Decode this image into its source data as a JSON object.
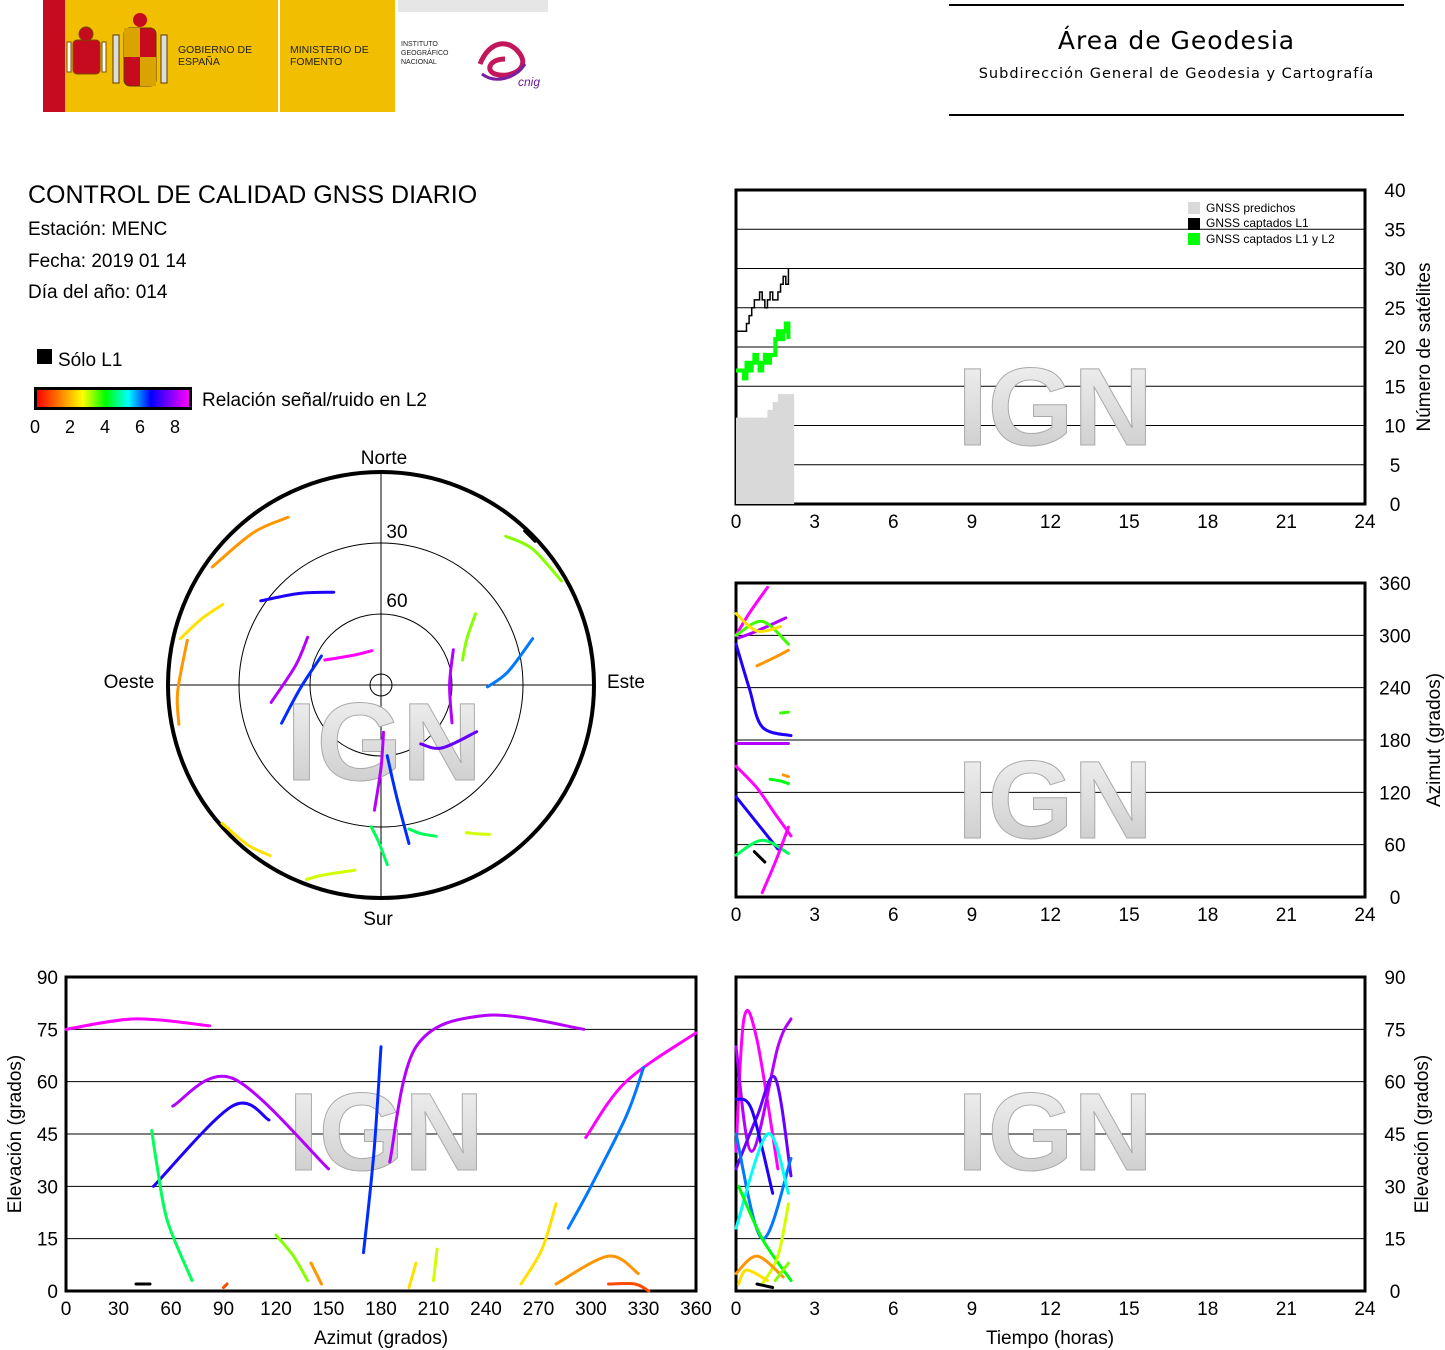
{
  "header": {
    "area_title": "Área de Geodesia",
    "area_subtitle": "Subdirección General de Geodesia y Cartografía",
    "logo": {
      "gobierno": "GOBIERNO DE ESPAÑA",
      "ministerio": "MINISTERIO DE FOMENTO",
      "instituto": "INSTITUTO GEOGRÁFICO NACIONAL",
      "cnig": "cnig"
    }
  },
  "info": {
    "title": "CONTROL DE CALIDAD GNSS DIARIO",
    "station": "Estación: MENC",
    "date": "Fecha: 2019 01 14",
    "doy": "Día del año: 014"
  },
  "legend": {
    "only_l1": "Sólo L1",
    "snr_label": "Relación señal/ruido en L2",
    "snr_ticks": [
      "0",
      "2",
      "4",
      "6",
      "8"
    ]
  },
  "watermark": "IGN",
  "colors": {
    "gnss_predicted": "#d9d9d9",
    "gnss_l1": "#000000",
    "gnss_l1_l2": "#00ff00"
  },
  "chart_data": [
    {
      "id": "skyplot",
      "type": "polar",
      "labels": {
        "north": "Norte",
        "south": "Sur",
        "east": "Este",
        "west": "Oeste"
      },
      "rings": [
        "30",
        "60"
      ],
      "tracks": [
        {
          "az": [
            305,
            320,
            331
          ],
          "el": [
            3,
            6,
            9
          ],
          "snr": 1
        },
        {
          "az": [
            283,
            290,
            297
          ],
          "el": [
            3,
            9,
            15
          ],
          "snr": 1.5
        },
        {
          "az": [
            259,
            268,
            283
          ],
          "el": [
            3,
            4,
            6
          ],
          "snr": 1
        },
        {
          "az": [
            229,
            220,
            213
          ],
          "el": [
            1,
            2,
            4
          ],
          "snr": 1.5
        },
        {
          "az": [
            201,
            197,
            188
          ],
          "el": [
            2,
            6,
            11
          ],
          "snr": 2
        },
        {
          "az": [
            144,
            147,
            150
          ],
          "el": [
            12,
            15,
            18
          ],
          "snr": 2
        },
        {
          "az": [
            160,
            165,
            169
          ],
          "el": [
            22,
            25,
            28
          ],
          "snr": 4
        },
        {
          "az": [
            43,
            45,
            47
          ],
          "el": [
            1,
            1,
            1
          ],
          "snr": 0
        },
        {
          "az": [
            60,
            48,
            40
          ],
          "el": [
            2,
            4,
            8
          ],
          "snr": 2.5
        },
        {
          "az": [
            53,
            62,
            73
          ],
          "el": [
            40,
            49,
            54
          ],
          "snr": 2.5
        },
        {
          "az": [
            73,
            84,
            91
          ],
          "el": [
            23,
            36,
            45
          ],
          "snr": 6
        },
        {
          "az": [
            64,
            90,
            118
          ],
          "el": [
            56,
            61,
            56
          ],
          "snr": 8
        },
        {
          "az": [
            116,
            136,
            146
          ],
          "el": [
            45,
            53,
            60
          ],
          "snr": 7.5
        },
        {
          "az": [
            249,
            268,
            296
          ],
          "el": [
            45,
            56,
            62
          ],
          "snr": 6.5
        },
        {
          "az": [
            261,
            283,
            303
          ],
          "el": [
            43,
            53,
            53
          ],
          "snr": 8
        },
        {
          "az": [
            294,
            318,
            345
          ],
          "el": [
            64,
            73,
            75
          ],
          "snr": 8.5
        },
        {
          "az": [
            183,
            180,
            177
          ],
          "el": [
            37,
            55,
            70
          ],
          "snr": 8
        },
        {
          "az": [
            170,
            172,
            175
          ],
          "el": [
            22,
            42,
            60
          ],
          "snr": 6.5
        },
        {
          "az": [
            178,
            181,
            184
          ],
          "el": [
            14,
            24,
            30
          ],
          "snr": 4
        },
        {
          "az": [
            305,
            318,
            333
          ],
          "el": [
            28,
            38,
            46
          ],
          "snr": 7
        }
      ]
    },
    {
      "id": "satellite-count",
      "type": "line",
      "xlim": [
        0,
        24
      ],
      "ylim": [
        0,
        40
      ],
      "xticks": [
        "0",
        "3",
        "6",
        "9",
        "12",
        "15",
        "18",
        "21",
        "24"
      ],
      "yticks": [
        "0",
        "5",
        "10",
        "15",
        "20",
        "25",
        "30",
        "35",
        "40"
      ],
      "ylabel": "Número de satélites",
      "legend_items": [
        "GNSS predichos",
        "GNSS captados L1",
        "GNSS captados L1 y L2"
      ],
      "predicted": {
        "x": [
          0.1,
          0.3,
          0.5,
          0.7,
          0.9,
          1.1,
          1.3,
          1.5,
          1.7,
          1.9,
          2.1
        ],
        "y": [
          11,
          11,
          11,
          11,
          11,
          11,
          12,
          13,
          14,
          14,
          14
        ]
      },
      "l1": {
        "x": [
          0,
          0.2,
          0.4,
          0.5,
          0.6,
          0.7,
          0.8,
          0.9,
          1.0,
          1.1,
          1.2,
          1.3,
          1.4,
          1.5,
          1.6,
          1.7,
          1.8,
          1.9,
          2.0
        ],
        "y": [
          22,
          22,
          23,
          24,
          25,
          26,
          26,
          27,
          26,
          25,
          26,
          27,
          26,
          26,
          27,
          28,
          29,
          28,
          30
        ]
      },
      "l1l2": {
        "x": [
          0,
          0.2,
          0.3,
          0.4,
          0.5,
          0.6,
          0.7,
          0.8,
          0.9,
          1.0,
          1.1,
          1.2,
          1.3,
          1.4,
          1.5,
          1.6,
          1.7,
          1.8,
          1.9,
          2.0
        ],
        "y": [
          17,
          17,
          16,
          18,
          17,
          18,
          19,
          18,
          17,
          18,
          19,
          18,
          19,
          19,
          21,
          22,
          21,
          22,
          23,
          21
        ]
      }
    },
    {
      "id": "azimuth-vs-time",
      "type": "scatter",
      "xlim": [
        0,
        24
      ],
      "ylim": [
        0,
        360
      ],
      "xticks": [
        "0",
        "3",
        "6",
        "9",
        "12",
        "15",
        "18",
        "21",
        "24"
      ],
      "yticks": [
        "0",
        "60",
        "120",
        "180",
        "240",
        "300",
        "360"
      ],
      "ylabel": "Azimut (grados)",
      "tracks": [
        {
          "t": [
            0.0,
            0.5,
            1.2
          ],
          "az": [
            300,
            325,
            355
          ],
          "snr": 8.5
        },
        {
          "t": [
            0.1,
            0.8,
            1.9
          ],
          "az": [
            297,
            305,
            320
          ],
          "snr": 8
        },
        {
          "t": [
            0.0,
            1.0,
            2.0
          ],
          "az": [
            300,
            316,
            290
          ],
          "snr": 3
        },
        {
          "t": [
            0.0,
            0.8,
            1.7
          ],
          "az": [
            325,
            305,
            310
          ],
          "snr": 1.5
        },
        {
          "t": [
            0.8,
            1.5,
            2.0
          ],
          "az": [
            265,
            275,
            283
          ],
          "snr": 1
        },
        {
          "t": [
            0.0,
            0.5,
            1.0,
            2.1
          ],
          "az": [
            290,
            240,
            195,
            185
          ],
          "snr": 7
        },
        {
          "t": [
            1.7,
            2.0
          ],
          "az": [
            211,
            212
          ],
          "snr": 3
        },
        {
          "t": [
            0.0,
            1.0,
            2.0
          ],
          "az": [
            176,
            176,
            176
          ],
          "snr": 8
        },
        {
          "t": [
            1.3,
            1.7,
            2.0
          ],
          "az": [
            135,
            133,
            130
          ],
          "snr": 3.5
        },
        {
          "t": [
            1.8,
            2.0
          ],
          "az": [
            140,
            138
          ],
          "snr": 1
        },
        {
          "t": [
            0.0,
            0.8,
            1.5,
            2.1
          ],
          "az": [
            150,
            125,
            95,
            70
          ],
          "snr": 8.5
        },
        {
          "t": [
            0.0,
            0.8,
            1.6
          ],
          "az": [
            115,
            85,
            55
          ],
          "snr": 7
        },
        {
          "t": [
            0.0,
            1.0,
            2.0
          ],
          "az": [
            48,
            65,
            50
          ],
          "snr": 4
        },
        {
          "t": [
            1.0,
            1.5,
            2.0
          ],
          "az": [
            5,
            40,
            80
          ],
          "snr": 8.5
        },
        {
          "t": [
            0.7,
            1.1
          ],
          "az": [
            52,
            40
          ],
          "snr": 0
        }
      ]
    },
    {
      "id": "elevation-vs-azimuth",
      "type": "scatter",
      "xlim": [
        0,
        360
      ],
      "ylim": [
        0,
        90
      ],
      "xticks": [
        "0",
        "30",
        "60",
        "90",
        "120",
        "150",
        "180",
        "210",
        "240",
        "270",
        "300",
        "330",
        "360"
      ],
      "yticks": [
        "0",
        "15",
        "30",
        "45",
        "60",
        "75",
        "90"
      ],
      "xlabel": "Azimut (grados)",
      "ylabel": "Elevación (grados)",
      "tracks": [
        {
          "az": [
            0,
            40,
            82
          ],
          "el": [
            75,
            78,
            76
          ],
          "snr": 8.5
        },
        {
          "az": [
            61,
            95,
            150
          ],
          "el": [
            53,
            61,
            35
          ],
          "snr": 8
        },
        {
          "az": [
            50,
            95,
            116
          ],
          "el": [
            30,
            53,
            49
          ],
          "snr": 7
        },
        {
          "az": [
            49,
            52,
            58,
            72
          ],
          "el": [
            46,
            36,
            20,
            3
          ],
          "snr": 4
        },
        {
          "az": [
            170,
            176,
            180
          ],
          "el": [
            11,
            40,
            70
          ],
          "snr": 6.5
        },
        {
          "az": [
            185,
            200,
            240,
            296
          ],
          "el": [
            37,
            70,
            79,
            75
          ],
          "snr": 8
        },
        {
          "az": [
            297,
            320,
            360
          ],
          "el": [
            44,
            60,
            74
          ],
          "snr": 8.5
        },
        {
          "az": [
            287,
            300,
            320,
            330
          ],
          "el": [
            18,
            30,
            50,
            64
          ],
          "snr": 6
        },
        {
          "az": [
            120,
            130,
            138
          ],
          "el": [
            16,
            10,
            3
          ],
          "snr": 2.5
        },
        {
          "az": [
            260,
            272,
            280
          ],
          "el": [
            2,
            12,
            25
          ],
          "snr": 1.5
        },
        {
          "az": [
            280,
            310,
            327
          ],
          "el": [
            2,
            10,
            5
          ],
          "snr": 1
        },
        {
          "az": [
            140,
            143,
            146
          ],
          "el": [
            8,
            5,
            2
          ],
          "snr": 1
        },
        {
          "az": [
            196,
            200
          ],
          "el": [
            1,
            8
          ],
          "snr": 1.5
        },
        {
          "az": [
            210,
            212
          ],
          "el": [
            3,
            12
          ],
          "snr": 2
        },
        {
          "az": [
            310,
            325,
            333
          ],
          "el": [
            2,
            2,
            0
          ],
          "snr": 0.5
        },
        {
          "az": [
            40,
            48
          ],
          "el": [
            2,
            2
          ],
          "snr": 0
        },
        {
          "az": [
            90,
            92
          ],
          "el": [
            1,
            2
          ],
          "snr": 0.5
        }
      ]
    },
    {
      "id": "elevation-vs-time",
      "type": "scatter",
      "xlim": [
        0,
        24
      ],
      "ylim": [
        0,
        90
      ],
      "xticks": [
        "0",
        "3",
        "6",
        "9",
        "12",
        "15",
        "18",
        "21",
        "24"
      ],
      "yticks": [
        "0",
        "15",
        "30",
        "45",
        "60",
        "75",
        "90"
      ],
      "xlabel": "Tiempo (horas)",
      "ylabel": "Elevación (grados)",
      "tracks": [
        {
          "t": [
            0.0,
            0.3,
            0.8,
            1.6
          ],
          "el": [
            40,
            78,
            72,
            35
          ],
          "snr": 8.5
        },
        {
          "t": [
            0.0,
            0.6,
            1.6,
            2.1
          ],
          "el": [
            70,
            40,
            70,
            78
          ],
          "snr": 8
        },
        {
          "t": [
            0.0,
            0.8,
            1.5,
            2.1
          ],
          "el": [
            35,
            50,
            61,
            33
          ],
          "snr": 7.5
        },
        {
          "t": [
            0.0,
            0.6,
            1.4
          ],
          "el": [
            55,
            52,
            28
          ],
          "snr": 7
        },
        {
          "t": [
            0.0,
            1.0,
            2.1
          ],
          "el": [
            45,
            15,
            38
          ],
          "snr": 6
        },
        {
          "t": [
            0.0,
            1.2,
            2.0
          ],
          "el": [
            18,
            45,
            28
          ],
          "snr": 5
        },
        {
          "t": [
            0.1,
            1.0,
            2.1
          ],
          "el": [
            30,
            15,
            3
          ],
          "snr": 3.5
        },
        {
          "t": [
            1.0,
            1.6,
            2.0
          ],
          "el": [
            2,
            10,
            25
          ],
          "snr": 2
        },
        {
          "t": [
            0.0,
            0.8,
            1.8
          ],
          "el": [
            5,
            10,
            4
          ],
          "snr": 1
        },
        {
          "t": [
            0.1,
            0.4,
            1.2
          ],
          "el": [
            2,
            6,
            3
          ],
          "snr": 1.5
        },
        {
          "t": [
            1.5,
            2.0
          ],
          "el": [
            3,
            8
          ],
          "snr": 2.5
        },
        {
          "t": [
            0.8,
            1.4
          ],
          "el": [
            2,
            1
          ],
          "snr": 0
        }
      ]
    }
  ]
}
